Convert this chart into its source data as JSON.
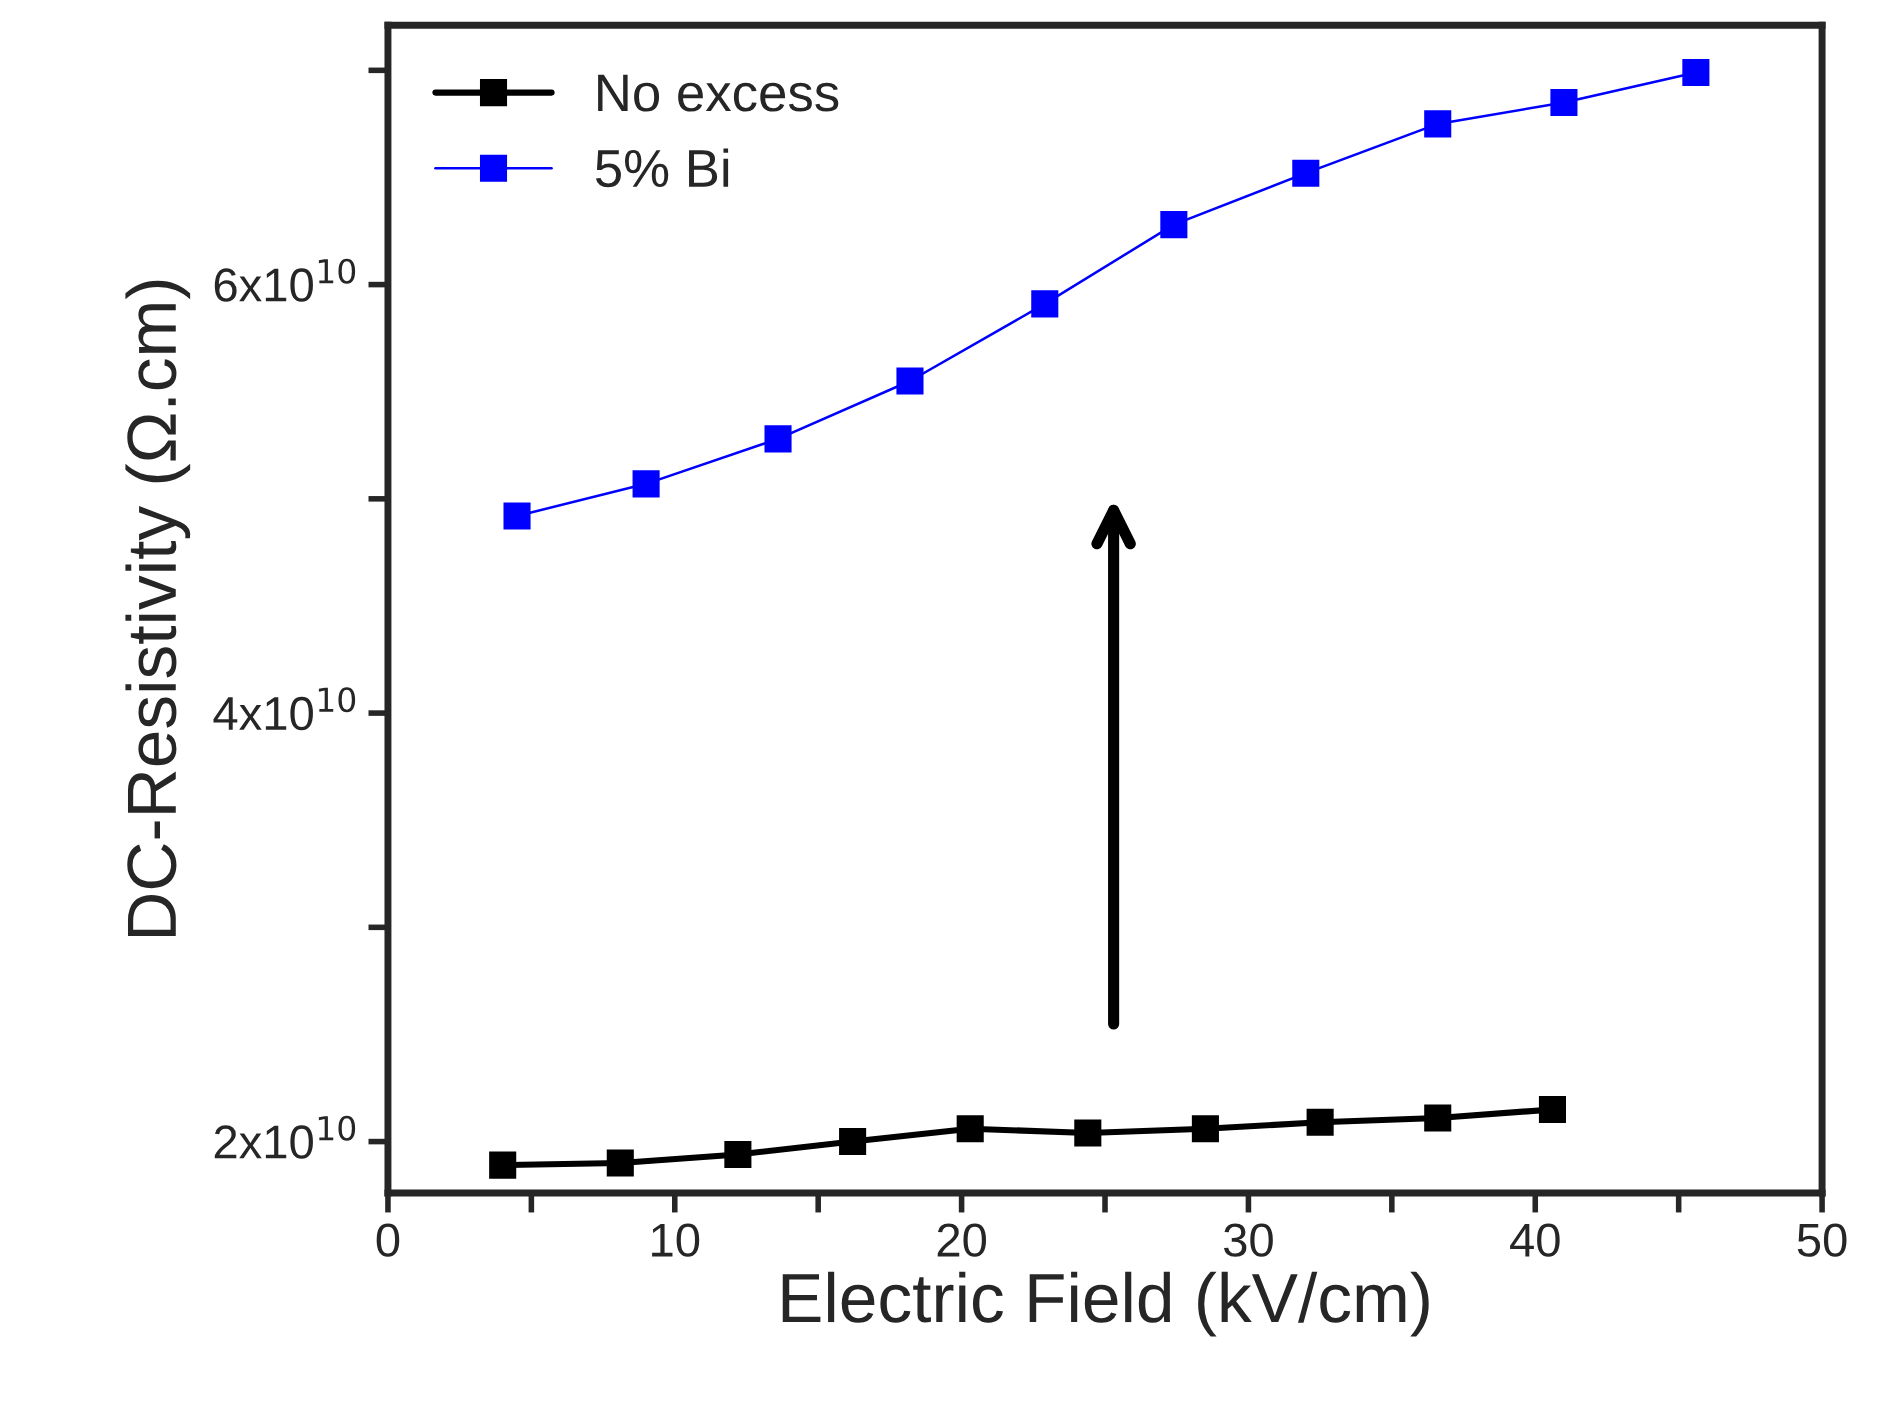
{
  "chart_data": {
    "type": "line",
    "xlabel": "Electric Field (kV/cm)",
    "ylabel": "DC-Resistivity (Ω.cm)",
    "xlim": [
      0,
      50
    ],
    "xticks": [
      0,
      {
        "value": 5,
        "label": null
      },
      10,
      {
        "value": 15,
        "label": null
      },
      20,
      {
        "value": 25,
        "label": null
      },
      30,
      {
        "value": 35,
        "label": null
      },
      40,
      {
        "value": 45,
        "label": null
      },
      50
    ],
    "ylim": [
      17600000000.0,
      72100000000.0
    ],
    "yticks": [
      {
        "value": 20000000000.0,
        "label": "2x10$^{10}$"
      },
      {
        "value": 30000000000.0,
        "label": null
      },
      {
        "value": 40000000000.0,
        "label": "4x10$^{10}$"
      },
      {
        "value": 50000000000.0,
        "label": null
      },
      {
        "value": 60000000000.0,
        "label": "6x10$^{10}$"
      },
      {
        "value": 70000000000.0,
        "label": null
      }
    ],
    "grid": false,
    "legend": "top left",
    "marker": "square",
    "line_style": "solid",
    "series": [
      {
        "name": "No excess",
        "color": "#000000",
        "x": [
          4.0,
          8.1,
          12.2,
          16.2,
          20.3,
          24.4,
          28.5,
          32.5,
          36.6,
          40.6
        ],
        "values": [
          18900000000.0,
          19000000000.0,
          19400000000.0,
          20000000000.0,
          20600000000.0,
          20400000000.0,
          20600000000.0,
          20900000000.0,
          21100000000.0,
          21500000000.0
        ]
      },
      {
        "name": "5% Bi",
        "color": "#0000ff",
        "x": [
          4.5,
          9.0,
          13.6,
          18.2,
          22.9,
          27.4,
          32.0,
          36.6,
          41.0,
          45.6
        ],
        "values": [
          49200000000.0,
          50700000000.0,
          52800000000.0,
          55500000000.0,
          59100000000.0,
          62800000000.0,
          65200000000.0,
          67500000000.0,
          68500000000.0,
          69900000000.0
        ]
      }
    ]
  }
}
